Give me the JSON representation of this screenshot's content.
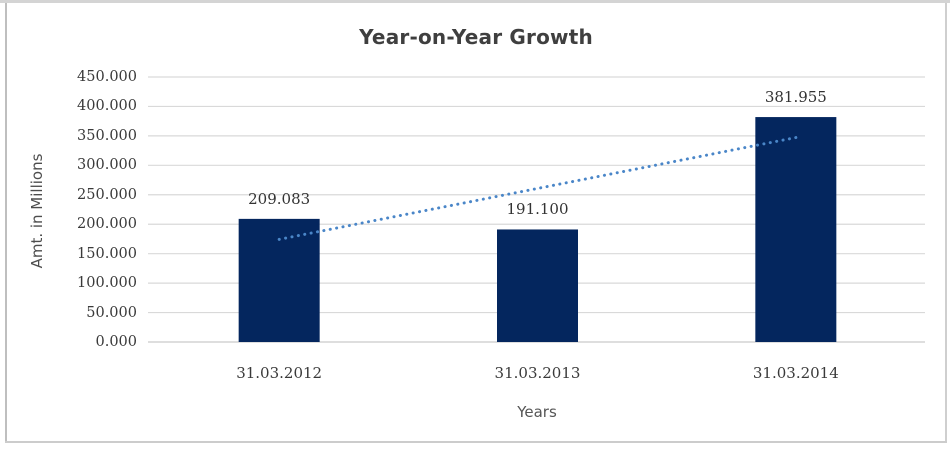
{
  "chart_data": {
    "type": "bar",
    "title": "Year-on-Year Growth",
    "xlabel": "Years",
    "ylabel": "Amt. in Millions",
    "categories": [
      "31.03.2012",
      "31.03.2013",
      "31.03.2014"
    ],
    "values": [
      209.083,
      191.1,
      381.955
    ],
    "value_labels": [
      "209.083",
      "191.100",
      "381.955"
    ],
    "ylim": [
      0,
      450
    ],
    "ytick_step": 50,
    "ytick_labels": [
      "0.000",
      "50.000",
      "100.000",
      "150.000",
      "200.000",
      "250.000",
      "300.000",
      "350.000",
      "400.000",
      "450.000"
    ],
    "grid": true,
    "legend": "none",
    "trendline": {
      "type": "linear",
      "style": "dotted"
    },
    "colors": {
      "bar": "#04265e",
      "trendline": "#4a86c8",
      "gridline": "#d9d9d9",
      "baseline": "#c9c9c9",
      "tick_label": "#3a3a3a",
      "title": "#3f3f3f"
    }
  }
}
